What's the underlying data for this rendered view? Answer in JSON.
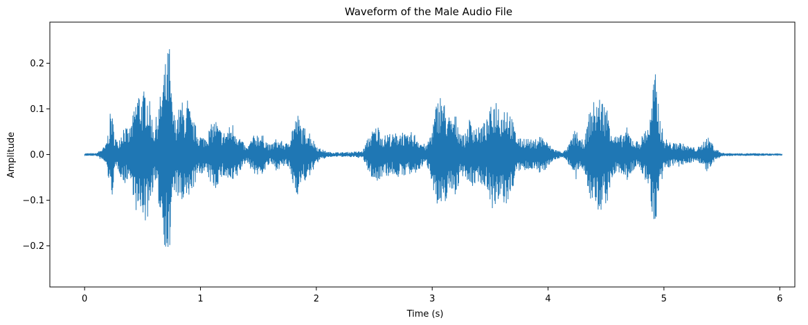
{
  "chart_data": {
    "type": "line",
    "title": "Waveform of the Male Audio File",
    "xlabel": "Time (s)",
    "ylabel": "Amplitude",
    "xlim": [
      -0.3,
      6.13
    ],
    "ylim": [
      -0.29,
      0.29
    ],
    "x_ticks": [
      0,
      1,
      2,
      3,
      4,
      5,
      6
    ],
    "x_tick_labels": [
      "0",
      "1",
      "2",
      "3",
      "4",
      "5",
      "6"
    ],
    "y_ticks": [
      -0.2,
      -0.1,
      0.0,
      0.1,
      0.2
    ],
    "y_tick_labels": [
      "−0.2",
      "−0.1",
      "0.0",
      "0.1",
      "0.2"
    ],
    "grid": false,
    "legend": "none",
    "series_color": "#1f77b4",
    "duration": 6.02,
    "envelope": [
      [
        0.0,
        0.003
      ],
      [
        0.1,
        0.003
      ],
      [
        0.18,
        0.02
      ],
      [
        0.21,
        0.06
      ],
      [
        0.23,
        0.115
      ],
      [
        0.25,
        0.06
      ],
      [
        0.28,
        0.03
      ],
      [
        0.3,
        0.04
      ],
      [
        0.34,
        0.07
      ],
      [
        0.38,
        0.05
      ],
      [
        0.42,
        0.09
      ],
      [
        0.46,
        0.15
      ],
      [
        0.5,
        0.13
      ],
      [
        0.53,
        0.16
      ],
      [
        0.56,
        0.12
      ],
      [
        0.6,
        0.06
      ],
      [
        0.63,
        0.1
      ],
      [
        0.66,
        0.14
      ],
      [
        0.69,
        0.2
      ],
      [
        0.71,
        0.21
      ],
      [
        0.73,
        0.26
      ],
      [
        0.75,
        0.13
      ],
      [
        0.78,
        0.08
      ],
      [
        0.81,
        0.1
      ],
      [
        0.84,
        0.12
      ],
      [
        0.87,
        0.09
      ],
      [
        0.89,
        0.13
      ],
      [
        0.92,
        0.08
      ],
      [
        0.95,
        0.07
      ],
      [
        0.98,
        0.05
      ],
      [
        1.02,
        0.04
      ],
      [
        1.06,
        0.05
      ],
      [
        1.1,
        0.07
      ],
      [
        1.13,
        0.08
      ],
      [
        1.16,
        0.06
      ],
      [
        1.2,
        0.05
      ],
      [
        1.24,
        0.06
      ],
      [
        1.28,
        0.07
      ],
      [
        1.32,
        0.05
      ],
      [
        1.36,
        0.03
      ],
      [
        1.4,
        0.015
      ],
      [
        1.45,
        0.04
      ],
      [
        1.5,
        0.05
      ],
      [
        1.55,
        0.04
      ],
      [
        1.6,
        0.02
      ],
      [
        1.65,
        0.035
      ],
      [
        1.7,
        0.03
      ],
      [
        1.75,
        0.025
      ],
      [
        1.8,
        0.07
      ],
      [
        1.84,
        0.09
      ],
      [
        1.88,
        0.06
      ],
      [
        1.93,
        0.06
      ],
      [
        1.97,
        0.035
      ],
      [
        2.02,
        0.015
      ],
      [
        2.1,
        0.006
      ],
      [
        2.2,
        0.005
      ],
      [
        2.3,
        0.006
      ],
      [
        2.4,
        0.008
      ],
      [
        2.45,
        0.04
      ],
      [
        2.5,
        0.06
      ],
      [
        2.54,
        0.065
      ],
      [
        2.58,
        0.04
      ],
      [
        2.62,
        0.05
      ],
      [
        2.66,
        0.045
      ],
      [
        2.7,
        0.05
      ],
      [
        2.74,
        0.055
      ],
      [
        2.78,
        0.04
      ],
      [
        2.82,
        0.05
      ],
      [
        2.86,
        0.045
      ],
      [
        2.9,
        0.03
      ],
      [
        2.95,
        0.02
      ],
      [
        3.0,
        0.06
      ],
      [
        3.04,
        0.12
      ],
      [
        3.08,
        0.14
      ],
      [
        3.12,
        0.1
      ],
      [
        3.16,
        0.08
      ],
      [
        3.2,
        0.09
      ],
      [
        3.24,
        0.06
      ],
      [
        3.28,
        0.04
      ],
      [
        3.32,
        0.08
      ],
      [
        3.36,
        0.07
      ],
      [
        3.4,
        0.06
      ],
      [
        3.44,
        0.07
      ],
      [
        3.48,
        0.08
      ],
      [
        3.52,
        0.12
      ],
      [
        3.56,
        0.13
      ],
      [
        3.6,
        0.1
      ],
      [
        3.64,
        0.12
      ],
      [
        3.68,
        0.09
      ],
      [
        3.72,
        0.05
      ],
      [
        3.76,
        0.035
      ],
      [
        3.8,
        0.04
      ],
      [
        3.84,
        0.035
      ],
      [
        3.88,
        0.03
      ],
      [
        3.92,
        0.045
      ],
      [
        3.96,
        0.04
      ],
      [
        4.0,
        0.025
      ],
      [
        4.04,
        0.015
      ],
      [
        4.08,
        0.01
      ],
      [
        4.12,
        0.006
      ],
      [
        4.16,
        0.012
      ],
      [
        4.2,
        0.035
      ],
      [
        4.24,
        0.06
      ],
      [
        4.28,
        0.03
      ],
      [
        4.32,
        0.04
      ],
      [
        4.36,
        0.1
      ],
      [
        4.4,
        0.12
      ],
      [
        4.44,
        0.13
      ],
      [
        4.48,
        0.12
      ],
      [
        4.52,
        0.1
      ],
      [
        4.56,
        0.05
      ],
      [
        4.6,
        0.04
      ],
      [
        4.64,
        0.045
      ],
      [
        4.68,
        0.06
      ],
      [
        4.72,
        0.04
      ],
      [
        4.76,
        0.03
      ],
      [
        4.8,
        0.035
      ],
      [
        4.84,
        0.06
      ],
      [
        4.88,
        0.08
      ],
      [
        4.92,
        0.19
      ],
      [
        4.94,
        0.15
      ],
      [
        4.97,
        0.08
      ],
      [
        5.0,
        0.04
      ],
      [
        5.04,
        0.03
      ],
      [
        5.08,
        0.025
      ],
      [
        5.12,
        0.03
      ],
      [
        5.16,
        0.025
      ],
      [
        5.2,
        0.02
      ],
      [
        5.24,
        0.018
      ],
      [
        5.28,
        0.015
      ],
      [
        5.32,
        0.02
      ],
      [
        5.36,
        0.04
      ],
      [
        5.4,
        0.035
      ],
      [
        5.44,
        0.015
      ],
      [
        5.5,
        0.004
      ],
      [
        5.6,
        0.003
      ],
      [
        5.8,
        0.003
      ],
      [
        6.02,
        0.002
      ]
    ]
  }
}
